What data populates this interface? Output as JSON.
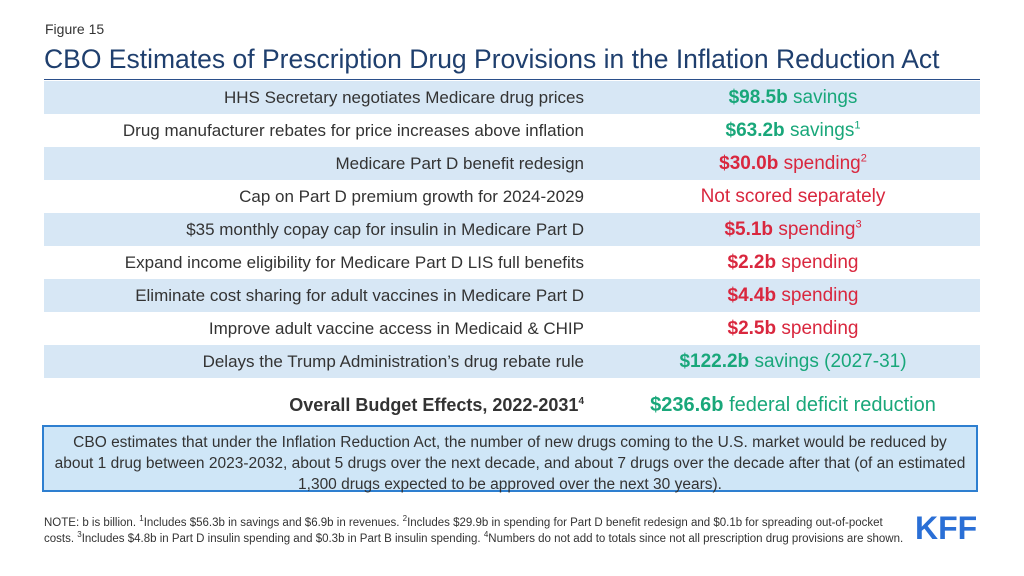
{
  "figure_label": "Figure 15",
  "title": "CBO Estimates of Prescription Drug Provisions in the Inflation Reduction Act",
  "rows": [
    {
      "label": "HHS Secretary negotiates Medicare drug prices",
      "amount": "$98.5b",
      "desc": "savings",
      "sup": "",
      "type": "savings"
    },
    {
      "label": "Drug manufacturer rebates for price increases above inflation",
      "amount": "$63.2b",
      "desc": "savings",
      "sup": "1",
      "type": "savings"
    },
    {
      "label": "Medicare Part D benefit redesign",
      "amount": "$30.0b",
      "desc": "spending",
      "sup": "2",
      "type": "spending"
    },
    {
      "label": "Cap on Part D premium growth for 2024-2029",
      "amount": "",
      "desc": "Not scored separately",
      "sup": "",
      "type": "spending"
    },
    {
      "label": "$35 monthly copay cap for insulin in Medicare Part D",
      "amount": "$5.1b",
      "desc": "spending",
      "sup": "3",
      "type": "spending"
    },
    {
      "label": "Expand income eligibility for Medicare Part D LIS full benefits",
      "amount": "$2.2b",
      "desc": "spending",
      "sup": "",
      "type": "spending"
    },
    {
      "label": "Eliminate cost sharing for adult vaccines in Medicare Part D",
      "amount": "$4.4b",
      "desc": "spending",
      "sup": "",
      "type": "spending"
    },
    {
      "label": "Improve adult vaccine access in Medicaid & CHIP",
      "amount": "$2.5b",
      "desc": "spending",
      "sup": "",
      "type": "spending"
    },
    {
      "label": "Delays the Trump Administration’s drug rebate rule",
      "amount": "$122.2b",
      "desc": "savings (2027-31)",
      "sup": "",
      "type": "savings"
    }
  ],
  "total": {
    "label": "Overall Budget Effects, 2022-2031",
    "label_sup": "4",
    "amount": "$236.6b",
    "desc": "federal deficit reduction"
  },
  "box_text": "CBO estimates that under the Inflation Reduction Act, the number of new drugs coming to the U.S. market would be reduced by about 1 drug between 2023-2032, about 5 drugs over the next decade, and about 7 drugs over the decade after that (of an estimated 1,300 drugs expected to be approved over the next 30 years).",
  "footnote": {
    "prefix": "NOTE: b is billion.",
    "items": [
      {
        "sup": "1",
        "text": "Includes $56.3b in savings and $6.9b in revenues."
      },
      {
        "sup": "2",
        "text": "Includes $29.9b in spending for Part D benefit redesign and $0.1b for spreading out-of-pocket costs."
      },
      {
        "sup": "3",
        "text": "Includes $4.8b in Part D insulin spending and $0.3b in Part B insulin spending."
      },
      {
        "sup": "4",
        "text": "Numbers do not add to totals since not all prescription drug provisions are shown."
      }
    ]
  },
  "logo_text": "KFF",
  "colors": {
    "savings": "#19a77a",
    "spending": "#d9273e",
    "title": "#1f3f6e",
    "band": "#d7e7f5",
    "logo": "#2a6fd6"
  }
}
